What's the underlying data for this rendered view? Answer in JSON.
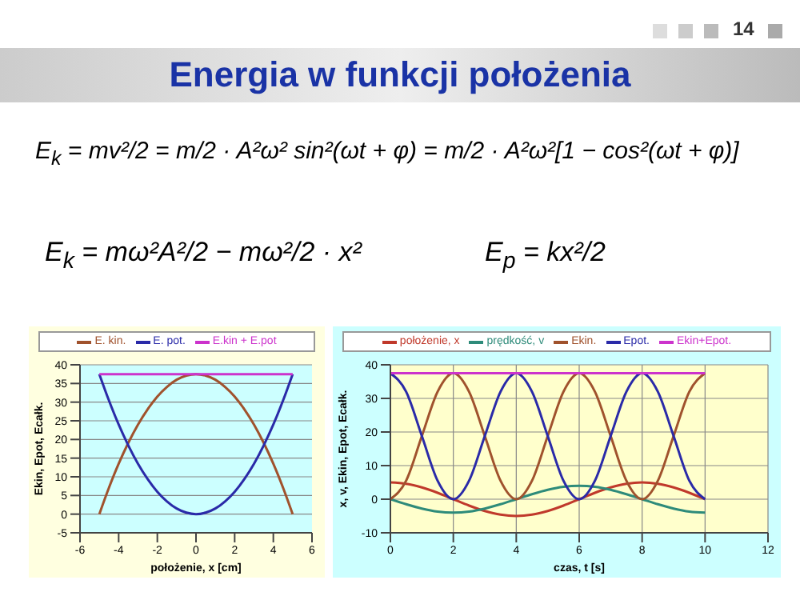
{
  "chart_data": [
    {
      "type": "other",
      "title": "Energia w funkcji położenia",
      "annotations": [
        "14",
        "E$_{k}$ = mv²/2 = m/2 · A²ω² sin²(ωt + φ) = m/2 · A²ω²[1 − cos²(ωt + φ)]",
        "E$_{k}$ = mω²A²/2 − mω²/2 · x²",
        "E$_{p}$ = kx²/2"
      ]
    },
    {
      "type": "line",
      "xlabel": "położenie, x [cm]",
      "ylabel": "Ekin, Epot, Ecałk.",
      "x": [
        -5,
        -4.5,
        -4,
        -3.5,
        -3,
        -2.5,
        -2,
        -1.5,
        -1,
        -0.5,
        0,
        0.5,
        1,
        1.5,
        2,
        2.5,
        3,
        3.5,
        4,
        4.5,
        5
      ],
      "xlim": [
        -6,
        6
      ],
      "xticks": [
        -6,
        -4,
        -2,
        0,
        2,
        4,
        6
      ],
      "ylim": [
        -5,
        40
      ],
      "yticks": [
        -5,
        0,
        5,
        10,
        15,
        20,
        25,
        30,
        35,
        40
      ],
      "grid": "y",
      "legend": "top",
      "marker": "none",
      "line_style": "solid",
      "series": [
        {
          "name": "E. kin.",
          "color": "#a0522d",
          "values": [
            0,
            7.1,
            13.5,
            19.1,
            24,
            28.1,
            31.5,
            34.1,
            36,
            37.1,
            37.5,
            37.1,
            36,
            34.1,
            31.5,
            28.1,
            24,
            19.1,
            13.5,
            7.1,
            0
          ]
        },
        {
          "name": "E. pot.",
          "color": "#2a2aa8",
          "values": [
            37.5,
            30.4,
            24,
            18.4,
            13.5,
            9.4,
            6,
            3.4,
            1.5,
            0.4,
            0,
            0.4,
            1.5,
            3.4,
            6,
            9.4,
            13.5,
            18.4,
            24,
            30.4,
            37.5
          ]
        },
        {
          "name": "E.kin + E.pot",
          "color": "#cc33cc",
          "values": [
            37.5,
            37.5,
            37.5,
            37.5,
            37.5,
            37.5,
            37.5,
            37.5,
            37.5,
            37.5,
            37.5,
            37.5,
            37.5,
            37.5,
            37.5,
            37.5,
            37.5,
            37.5,
            37.5,
            37.5,
            37.5
          ]
        }
      ]
    },
    {
      "type": "line",
      "xlabel": "czas, t [s]",
      "ylabel": "x, v, Ekin, Epot, Ecałk.",
      "x": [
        0,
        0.5,
        1,
        1.5,
        2,
        2.5,
        3,
        3.5,
        4,
        4.5,
        5,
        5.5,
        6,
        6.5,
        7,
        7.5,
        8,
        8.5,
        9,
        9.5,
        10
      ],
      "xlim": [
        0,
        12
      ],
      "xticks": [
        0,
        2,
        4,
        6,
        8,
        10,
        12
      ],
      "ylim": [
        -10,
        40
      ],
      "yticks": [
        -10,
        0,
        10,
        20,
        30,
        40
      ],
      "grid": true,
      "legend": "top",
      "marker": "none",
      "line_style": "solid",
      "series": [
        {
          "name": "położenie, x",
          "color": "#c0392b",
          "values": [
            5,
            4.6,
            3.5,
            1.9,
            0,
            -1.9,
            -3.5,
            -4.6,
            -5,
            -4.6,
            -3.5,
            -1.9,
            0,
            1.9,
            3.5,
            4.6,
            5,
            4.6,
            3.5,
            1.9,
            0
          ]
        },
        {
          "name": "prędkość, v",
          "color": "#2e8b7a",
          "values": [
            0,
            -1.5,
            -2.8,
            -3.7,
            -4,
            -3.7,
            -2.8,
            -1.5,
            0,
            1.5,
            2.8,
            3.7,
            4,
            3.7,
            2.8,
            1.5,
            0,
            -1.5,
            -2.8,
            -3.7,
            -4
          ]
        },
        {
          "name": "Ekin.",
          "color": "#a0522d",
          "values": [
            0,
            5.5,
            18.8,
            32,
            37.5,
            32,
            18.8,
            5.5,
            0,
            5.5,
            18.8,
            32,
            37.5,
            32,
            18.8,
            5.5,
            0,
            5.5,
            18.8,
            32,
            37.5
          ]
        },
        {
          "name": "Epot.",
          "color": "#2a2aa8",
          "values": [
            37.5,
            32,
            18.8,
            5.5,
            0,
            5.5,
            18.8,
            32,
            37.5,
            32,
            18.8,
            5.5,
            0,
            5.5,
            18.8,
            32,
            37.5,
            32,
            18.8,
            5.5,
            0
          ]
        },
        {
          "name": "Ekin+Epot.",
          "color": "#cc33cc",
          "values": [
            37.5,
            37.5,
            37.5,
            37.5,
            37.5,
            37.5,
            37.5,
            37.5,
            37.5,
            37.5,
            37.5,
            37.5,
            37.5,
            37.5,
            37.5,
            37.5,
            37.5,
            37.5,
            37.5,
            37.5,
            37.5
          ]
        }
      ]
    }
  ]
}
